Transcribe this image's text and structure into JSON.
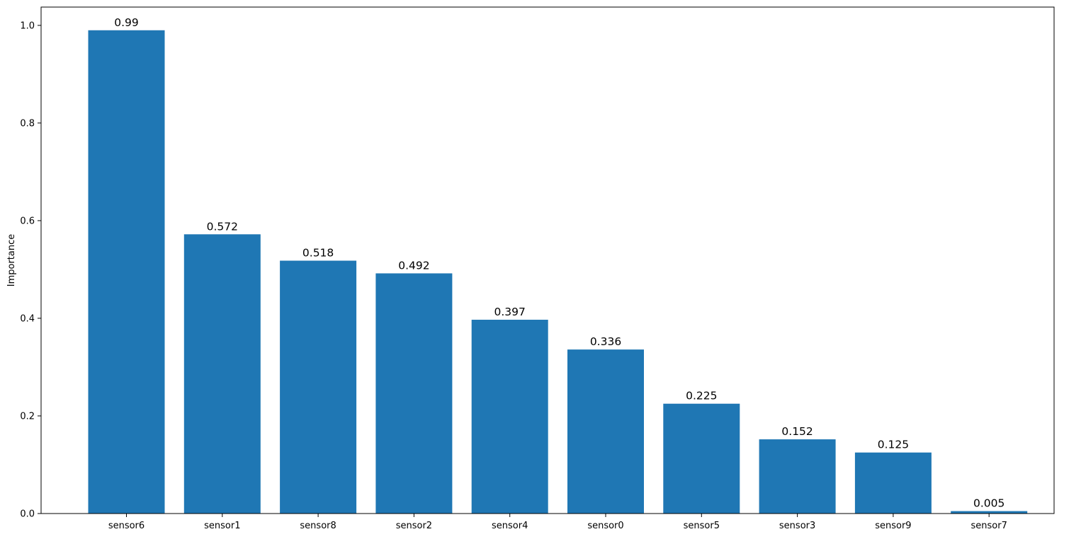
{
  "chart_data": {
    "type": "bar",
    "title": "",
    "xlabel": "",
    "ylabel": "Importance",
    "categories": [
      "sensor6",
      "sensor1",
      "sensor8",
      "sensor2",
      "sensor4",
      "sensor0",
      "sensor5",
      "sensor3",
      "sensor9",
      "sensor7"
    ],
    "values": [
      0.99,
      0.572,
      0.518,
      0.492,
      0.397,
      0.336,
      0.225,
      0.152,
      0.125,
      0.005
    ],
    "data_labels": [
      "0.99",
      "0.572",
      "0.518",
      "0.492",
      "0.397",
      "0.336",
      "0.225",
      "0.152",
      "0.125",
      "0.005"
    ],
    "yticks": [
      0.0,
      0.2,
      0.4,
      0.6,
      0.8,
      1.0
    ],
    "ytick_labels": [
      "0.0",
      "0.2",
      "0.4",
      "0.6",
      "0.8",
      "1.0"
    ],
    "ylim": [
      0,
      1.0375
    ],
    "grid": false,
    "legend": "none",
    "bar_color": "#1f77b4"
  }
}
